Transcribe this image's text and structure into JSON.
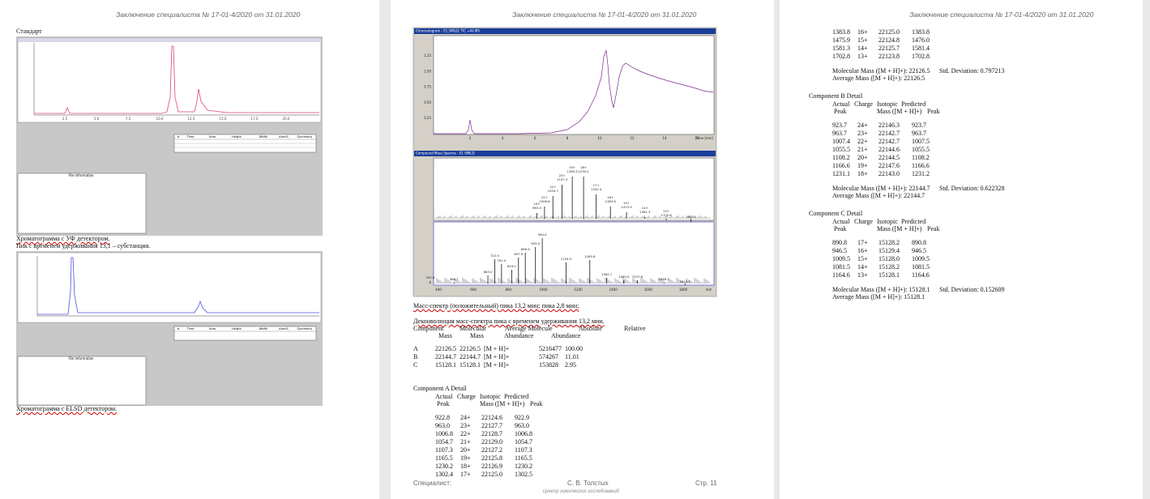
{
  "page1": {
    "header": "Заключение специалиста № 17-01-4/2020 от 31.01.2020",
    "standard": "Стандарт",
    "uv_caption": "Хроматограмма с УФ детектором.",
    "substance_note": "Пик с временем удерживания 13,1 – субстанция.",
    "elsd_caption": "Хроматограмма с ELSD детектором.",
    "uv_x_ticks": [
      "2.5",
      "5.0",
      "7.5",
      "10.0",
      "12.5",
      "15.0",
      "17.5",
      "20.0"
    ],
    "table_headers": [
      "#",
      "Time",
      "Area",
      "Height",
      "Width",
      "Area%",
      "Symmetry"
    ],
    "file_info": "File Information"
  },
  "page2": {
    "header": "Заключение специалиста № 17-01-4/2020 от 31.01.2020",
    "tic_title": "Chromatogram - E1 SMILD: TIC +All MS",
    "tic_y_ticks": [
      "1.25",
      "1.00",
      "0.75",
      "0.50",
      "0.25"
    ],
    "tic_x_ticks": [
      "2",
      "4",
      "6",
      "8",
      "10",
      "12",
      "14",
      "16"
    ],
    "tic_x_label": "Time [min]",
    "ms_title": "Compound Mass Spectra - E1 SMILD",
    "ms_x_ticks": [
      "400",
      "600",
      "800",
      "1000",
      "1200",
      "1400",
      "1600",
      "1800"
    ],
    "ms_x_label": "m/z",
    "top_peaks": [
      {
        "charge": "23+",
        "mz": "963.0"
      },
      {
        "charge": "22+",
        "mz": "1006.8"
      },
      {
        "charge": "21+",
        "mz": "1054.7"
      },
      {
        "charge": "20+",
        "mz": "1107.3"
      },
      {
        "charge": "19+",
        "mz": "1165.5"
      },
      {
        "charge": "18+",
        "mz": "1230.2"
      },
      {
        "charge": "17+",
        "mz": "1302.4"
      },
      {
        "charge": "16+",
        "mz": "1383.8"
      },
      {
        "charge": "15+",
        "mz": "1475.9"
      },
      {
        "charge": "14+",
        "mz": "1581.3"
      },
      {
        "charge": "13+",
        "mz": "1702.8"
      },
      {
        "charge": "",
        "mz": "1845.1"
      }
    ],
    "bottom_peaks": [
      "352.8",
      "488.7",
      "683.0",
      "722.0",
      "761.0",
      "819.0",
      "857.9",
      "896.9",
      "955.0",
      "994.0",
      "1129.9",
      "1265.8",
      "1362.7",
      "1460.9",
      "1537.8",
      "1689.7",
      "1810.5"
    ],
    "ms_caption": "Масс-спектр (положительный) пика 13,2 мин; пика 2,8 мин;",
    "deconv_caption": "Деконволюция масс-спектра пика с временем удерживания 13,2 мин.",
    "summary_header1": [
      "Component",
      "Molecular",
      "Average Molecule",
      "Absolute",
      "Relative"
    ],
    "summary_header2": [
      "Mass",
      "Mass",
      "Abundance",
      "Abundance"
    ],
    "summary_rows": [
      [
        "A",
        "22126.5",
        "22126.5",
        "[M + H]+",
        "5216477",
        "100.00"
      ],
      [
        "B",
        "22144.7",
        "22144.7",
        "[M + H]+",
        "574267",
        "11.01"
      ],
      [
        "C",
        "15128.1",
        "15128.1",
        "[M + H]+",
        "153828",
        "2.95"
      ]
    ],
    "component_a": {
      "title": "Component A Detail",
      "header1": [
        "Actual",
        "Charge",
        "Isotopic",
        "Predicted"
      ],
      "header2": [
        "Peak",
        "Mass ([M + H]+)",
        "Peak"
      ],
      "rows": [
        [
          "922.8",
          "24+",
          "22124.6",
          "922.9"
        ],
        [
          "963.0",
          "23+",
          "22127.7",
          "963.0"
        ],
        [
          "1006.8",
          "22+",
          "22128.7",
          "1006.8"
        ],
        [
          "1054.7",
          "21+",
          "22129.0",
          "1054.7"
        ],
        [
          "1107.3",
          "20+",
          "22127.2",
          "1107.3"
        ],
        [
          "1165.5",
          "19+",
          "22125.8",
          "1165.5"
        ],
        [
          "1230.2",
          "18+",
          "22126.9",
          "1230.2"
        ],
        [
          "1302.4",
          "17+",
          "22125.0",
          "1302.5"
        ]
      ]
    },
    "footer_label": "Специалист:",
    "footer_name": "С. В. Толстых",
    "footer_page": "Стр. 11",
    "footer_org": "Центр химических исследований"
  },
  "page3": {
    "header": "Заключение специалиста № 17-01-4/2020 от 31.01.2020",
    "component_a_cont": {
      "rows": [
        [
          "1383.8",
          "16+",
          "22125.0",
          "1383.8"
        ],
        [
          "1475.9",
          "15+",
          "22124.8",
          "1476.0"
        ],
        [
          "1581.3",
          "14+",
          "22125.7",
          "1581.4"
        ],
        [
          "1702.8",
          "13+",
          "22123.8",
          "1702.8"
        ]
      ],
      "molecular_mass": "Molecular Mass ([M + H]+): 22126.5",
      "std_dev": "Std. Deviation: 0.797213",
      "average_mass": "Average Mass ([M + H]+): 22126.5"
    },
    "component_b": {
      "title": "Component B Detail",
      "header1": [
        "Actual",
        "Charge",
        "Isotopic",
        "Predicted"
      ],
      "header2": [
        "Peak",
        "Mass ([M + H]+)",
        "Peak"
      ],
      "rows": [
        [
          "923.7",
          "24+",
          "22146.3",
          "923.7"
        ],
        [
          "963.7",
          "23+",
          "22142.7",
          "963.7"
        ],
        [
          "1007.4",
          "22+",
          "22142.7",
          "1007.5"
        ],
        [
          "1055.5",
          "21+",
          "22144.6",
          "1055.5"
        ],
        [
          "1108.2",
          "20+",
          "22144.5",
          "1108.2"
        ],
        [
          "1166.6",
          "19+",
          "22147.6",
          "1166.6"
        ],
        [
          "1231.1",
          "18+",
          "22143.0",
          "1231.2"
        ]
      ],
      "molecular_mass": "Molecular Mass ([M + H]+): 22144.7",
      "std_dev": "Std. Deviation: 0.622328",
      "average_mass": "Average Mass ([M + H]+): 22144.7"
    },
    "component_c": {
      "title": "Component C Detail",
      "header1": [
        "Actual",
        "Charge",
        "Isotopic",
        "Predicted"
      ],
      "header2": [
        "Peak",
        "Mass ([M + H]+)",
        "Peak"
      ],
      "rows": [
        [
          "890.8",
          "17+",
          "15128.2",
          "890.8"
        ],
        [
          "946.5",
          "16+",
          "15129.4",
          "946.5"
        ],
        [
          "1009.5",
          "15+",
          "15128.0",
          "1009.5"
        ],
        [
          "1081.5",
          "14+",
          "15128.2",
          "1081.5"
        ],
        [
          "1164.6",
          "13+",
          "15128.1",
          "1164.6"
        ]
      ],
      "molecular_mass": "Molecular Mass ([M + H]+): 15128.1",
      "std_dev": "Std. Deviation: 0.152609",
      "average_mass": "Average Mass ([M + H]+): 15128.1"
    }
  }
}
